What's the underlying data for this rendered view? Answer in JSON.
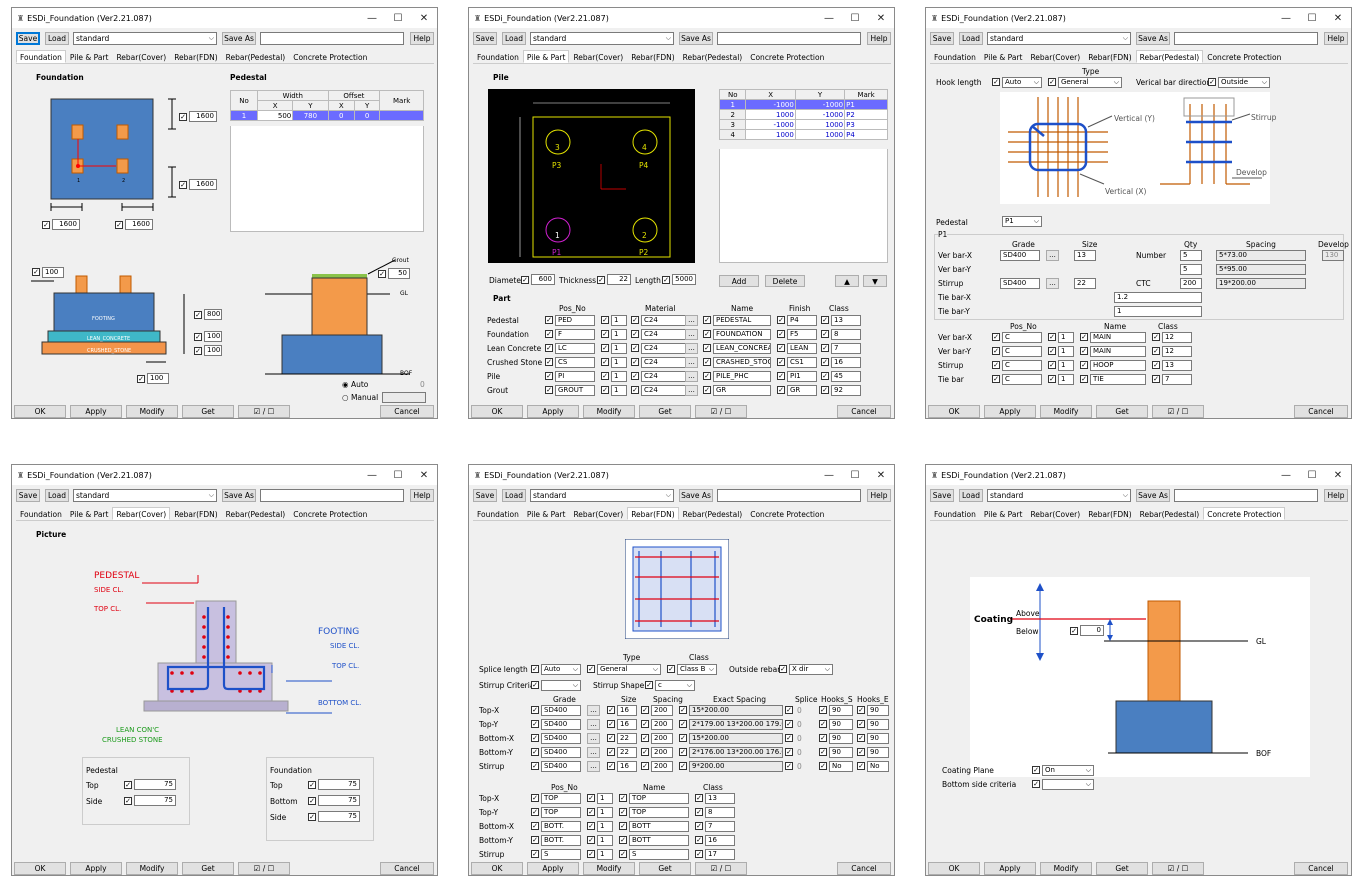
{
  "app": {
    "title": "ESDi_Foundation (Ver2.21.087)",
    "save": "Save",
    "load": "Load",
    "preset": "standard",
    "save_as": "Save As",
    "help": "Help",
    "min": "—",
    "max": "☐",
    "close": "✕"
  },
  "tabs": [
    "Foundation",
    "Pile & Part",
    "Rebar(Cover)",
    "Rebar(FDN)",
    "Rebar(Pedestal)",
    "Concrete Protection"
  ],
  "bottom": {
    "ok": "OK",
    "apply": "Apply",
    "modify": "Modify",
    "get": "Get",
    "toggle": "☑ / ☐",
    "cancel": "Cancel"
  },
  "w1": {
    "foundation_title": "Foundation",
    "pedestal_title": "Pedestal",
    "dim_right_top": "1600",
    "dim_right_bot": "1600",
    "dim_bl": "1600",
    "dim_br": "1600",
    "ped_head": {
      "no": "No",
      "width": "Width",
      "offset": "Offset",
      "mark": "Mark",
      "x": "X",
      "y": "Y",
      "ox": "X",
      "oy": "Y"
    },
    "ped_row": {
      "no": "1",
      "x": "500",
      "y": "780",
      "ox": "0",
      "oy": "0",
      "mark": ""
    },
    "sec_100": "100",
    "footing": "FOOTING",
    "lean": "LEAN_CONCRETE",
    "crushed": "CRUSHED_STONE",
    "v800": "800",
    "v100a": "100",
    "v100b": "100",
    "v100c": "100",
    "grout": "Grout",
    "grout_val": "50",
    "gl": "GL",
    "bof": "BOF",
    "auto": "Auto",
    "manual": "Manual",
    "auto_val": "0",
    "plan_lbl1": "1",
    "plan_lbl2": "2"
  },
  "w2": {
    "pile_title": "Pile",
    "part_title": "Part",
    "p_labels": [
      "P3",
      "P4",
      "P1",
      "P2"
    ],
    "p_nums": [
      "3",
      "4",
      "1",
      "2"
    ],
    "grid_head": {
      "no": "No",
      "x": "X",
      "y": "Y",
      "mark": "Mark"
    },
    "grid_rows": [
      [
        "1",
        "-1000",
        "-1000",
        "P1"
      ],
      [
        "2",
        "1000",
        "-1000",
        "P2"
      ],
      [
        "3",
        "-1000",
        "1000",
        "P3"
      ],
      [
        "4",
        "1000",
        "1000",
        "P4"
      ]
    ],
    "diameter": "Diameter",
    "diameter_val": "600",
    "thickness": "Thickness",
    "thickness_val": "22",
    "length": "Length",
    "length_val": "5000",
    "add": "Add",
    "delete": "Delete",
    "up": "▲",
    "down": "▼",
    "part_head": {
      "pos": "Pos_No",
      "mat": "Material",
      "name": "Name",
      "finish": "Finish",
      "class": "Class"
    },
    "parts": [
      [
        "Pedestal",
        "PED",
        "1",
        "C24",
        "PEDESTAL",
        "P4",
        "13"
      ],
      [
        "Foundation",
        "F",
        "1",
        "C24",
        "FOUNDATION",
        "F5",
        "8"
      ],
      [
        "Lean Concrete",
        "LC",
        "1",
        "C24",
        "LEAN_CONCREA",
        "LEAN",
        "7"
      ],
      [
        "Crushed Stone",
        "CS",
        "1",
        "C24",
        "CRASHED_STOO",
        "CS1",
        "16"
      ],
      [
        "Pile",
        "PI",
        "1",
        "C24",
        "PILE_PHC",
        "PI1",
        "45"
      ],
      [
        "Grout",
        "GROUT",
        "1",
        "C24",
        "GR",
        "GR",
        "92"
      ]
    ]
  },
  "w3": {
    "type_lbl": "Type",
    "hook": "Hook length",
    "hook_val": "Auto",
    "type_val": "General",
    "vdir": "Verical bar direction",
    "vdir_val": "Outside",
    "vert_y": "Vertical (Y)",
    "vert_x": "Vertical (X)",
    "stirrup": "Stirrup",
    "develop": "Develop",
    "pedestal": "Pedestal",
    "ped_val": "P1",
    "group": "P1",
    "head": {
      "grade": "Grade",
      "size": "Size",
      "qty": "Qty",
      "spacing": "Spacing",
      "develop": "Develop"
    },
    "rows": [
      {
        "l": "Ver bar-X",
        "grade": "SD400",
        "size": "13",
        "mid": "Number",
        "qty": "5",
        "sp": "5*73.00",
        "dev": "130"
      },
      {
        "l": "Ver bar-Y",
        "grade": "",
        "size": "",
        "mid": "",
        "qty": "5",
        "sp": "5*95.00",
        "dev": ""
      },
      {
        "l": "Stirrup",
        "grade": "SD400",
        "size": "22",
        "mid": "CTC",
        "qty": "200",
        "sp": "19*200.00",
        "dev": ""
      },
      {
        "l": "Tie bar-X",
        "grade": "",
        "size": "",
        "mid": "",
        "qty": "1.2",
        "sp": "",
        "dev": ""
      },
      {
        "l": "Tie bar-Y",
        "grade": "",
        "size": "",
        "mid": "",
        "qty": "1",
        "sp": "",
        "dev": ""
      }
    ],
    "head2": {
      "pos": "Pos_No",
      "name": "Name",
      "class": "Class"
    },
    "rows2": [
      [
        "Ver bar-X",
        "C",
        "1",
        "MAIN",
        "12"
      ],
      [
        "Ver bar-Y",
        "C",
        "1",
        "MAIN",
        "12"
      ],
      [
        "Stirrup",
        "C",
        "1",
        "HOOP",
        "13"
      ],
      [
        "Tie bar",
        "C",
        "1",
        "TIE",
        "7"
      ]
    ]
  },
  "w4": {
    "picture": "Picture",
    "pedestal": "PEDESTAL",
    "side_cl": "SIDE CL.",
    "top_cl": "TOP CL.",
    "footing": "FOOTING",
    "f_side_cl": "SIDE CL.",
    "f_top_cl": "TOP CL.",
    "bottom_cl": "BOTTOM CL.",
    "lean": "LEAN CON'C",
    "crushed": "CRUSHED STONE",
    "ped_grp": "Pedestal",
    "top": "Top",
    "top_val": "75",
    "side": "Side",
    "side_val": "75",
    "fdn_grp": "Foundation",
    "ftop": "Top",
    "ftop_val": "75",
    "fbot": "Bottom",
    "fbot_val": "75",
    "fside": "Side",
    "fside_val": "75"
  },
  "w5": {
    "type": "Type",
    "class": "Class",
    "splice": "Splice length",
    "splice_val": "Auto",
    "type_val": "General",
    "class_val": "Class B",
    "outside": "Outside rebar",
    "outside_val": "X dir",
    "stirrup_crit": "Stirrup Criteria",
    "stirrup_shape": "Stirrup Shape",
    "shape_val": "c",
    "head": {
      "grade": "Grade",
      "size": "Size",
      "spacing": "Spacing",
      "exact": "Exact Spacing",
      "splice": "Splice",
      "hs": "Hooks_S",
      "he": "Hooks_E"
    },
    "rows": [
      [
        "Top-X",
        "SD400",
        "16",
        "200",
        "15*200.00",
        "0",
        "90",
        "90"
      ],
      [
        "Top-Y",
        "SD400",
        "16",
        "200",
        "2*179.00 13*200.00 179.00",
        "0",
        "90",
        "90"
      ],
      [
        "Bottom-X",
        "SD400",
        "22",
        "200",
        "15*200.00",
        "0",
        "90",
        "90"
      ],
      [
        "Bottom-Y",
        "SD400",
        "22",
        "200",
        "2*176.00 13*200.00 176.00",
        "0",
        "90",
        "90"
      ],
      [
        "Stirrup",
        "SD400",
        "16",
        "200",
        "9*200.00",
        "0",
        "No",
        "No"
      ]
    ],
    "head2": {
      "pos": "Pos_No",
      "name": "Name",
      "class": "Class"
    },
    "rows2": [
      [
        "Top-X",
        "TOP",
        "1",
        "TOP",
        "13"
      ],
      [
        "Top-Y",
        "TOP",
        "1",
        "TOP",
        "8"
      ],
      [
        "Bottom-X",
        "BOTT.",
        "1",
        "BOTT",
        "7"
      ],
      [
        "Bottom-Y",
        "BOTT.",
        "1",
        "BOTT",
        "16"
      ],
      [
        "Stirrup",
        "S",
        "1",
        "S",
        "17"
      ]
    ]
  },
  "w6": {
    "coating": "Coating",
    "above": "Above",
    "below": "Below",
    "below_val": "0",
    "gl": "GL",
    "bof": "BOF",
    "plane": "Coating Plane",
    "plane_val": "On",
    "bottom_side": "Bottom side criteria"
  },
  "colors": {
    "found": "#4a7fc1",
    "ped": "#f39a4a",
    "lean": "#3fb8c8",
    "crushed": "#f3944a",
    "sel": "#6b6bff"
  }
}
